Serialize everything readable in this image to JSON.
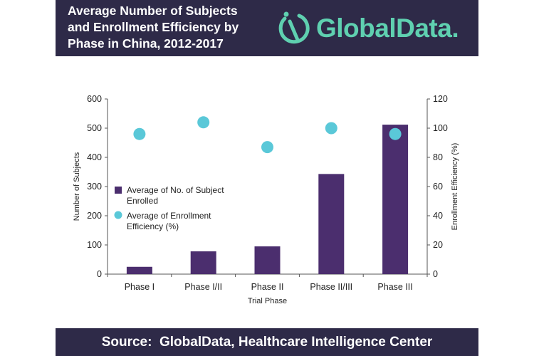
{
  "header": {
    "title_lines": [
      "Average Number of Subjects",
      "and Enrollment Efficiency by",
      "Phase in China, 2012-2017"
    ],
    "logo_text": "GlobalData.",
    "logo_icon": "globaldata-logo-icon",
    "background": "#2e2a48",
    "logo_color": "#5fd0b0"
  },
  "footer": {
    "source": "Source:  GlobalData, Healthcare Intelligence Center"
  },
  "chart_data": {
    "type": "bar",
    "categories": [
      "Phase I",
      "Phase I/II",
      "Phase II",
      "Phase II/III",
      "Phase III"
    ],
    "xlabel": "Trial Phase",
    "ylabel": "Number of Subjects",
    "y2label": "Enrollment Efficiency (%)",
    "ylim": [
      0,
      600
    ],
    "y2lim": [
      0,
      120
    ],
    "yticks": [
      0,
      100,
      200,
      300,
      400,
      500,
      600
    ],
    "y2ticks": [
      0,
      20,
      40,
      60,
      80,
      100,
      120
    ],
    "grid": false,
    "legend_position": "left-middle",
    "series": [
      {
        "name": "Average of No. of Subject Enrolled",
        "kind": "bar",
        "axis": "left",
        "color": "#4b2e6e",
        "values": [
          25,
          78,
          95,
          343,
          512
        ]
      },
      {
        "name": "Average of Enrollment Efficiency (%)",
        "kind": "scatter",
        "axis": "right",
        "color": "#5ac8d8",
        "values": [
          96,
          104,
          87,
          100,
          96
        ]
      }
    ],
    "legend": [
      {
        "lines": [
          "Average of No. of Subject",
          "Enrolled"
        ]
      },
      {
        "lines": [
          "Average of Enrollment",
          "Efficiency (%)"
        ]
      }
    ]
  }
}
